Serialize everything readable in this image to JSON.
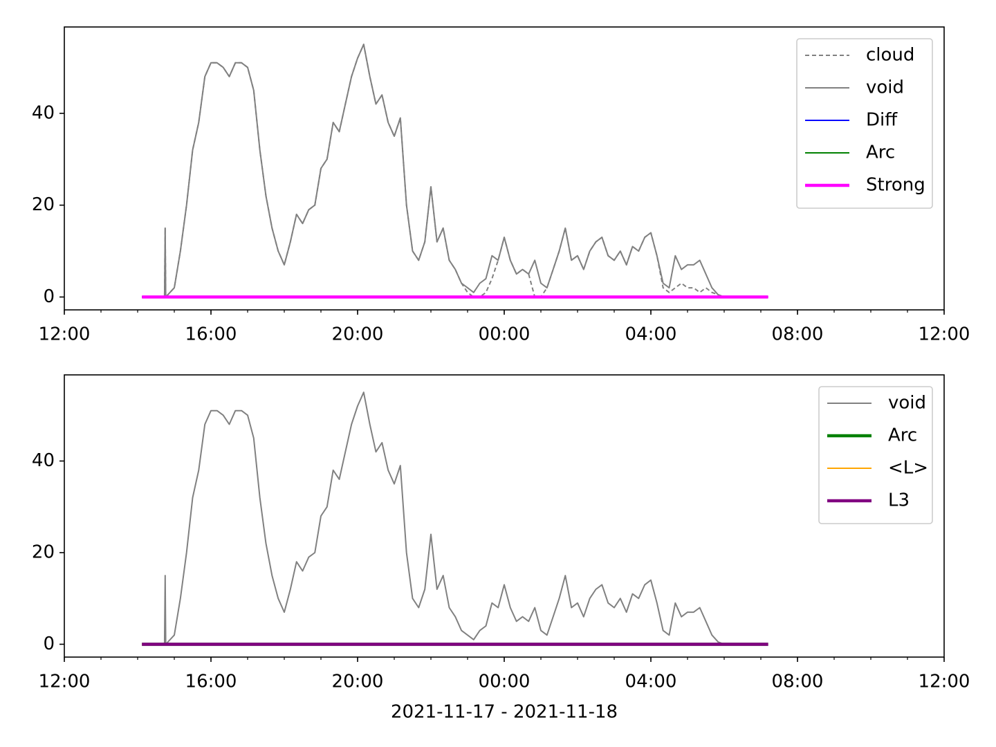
{
  "chart_data": [
    {
      "type": "line",
      "xlim": [
        "12:00",
        "12:00"
      ],
      "xticks": [
        "12:00",
        "16:00",
        "20:00",
        "00:00",
        "04:00",
        "08:00",
        "12:00"
      ],
      "xminorticks": [
        "12:00",
        "13:00",
        "14:00",
        "15:00",
        "16:00",
        "17:00",
        "18:00",
        "19:00",
        "20:00",
        "21:00",
        "22:00",
        "23:00",
        "00:00",
        "01:00",
        "02:00",
        "03:00",
        "04:00",
        "05:00",
        "06:00",
        "07:00",
        "08:00",
        "09:00",
        "10:00",
        "11:00",
        "12:00"
      ],
      "ylim": [
        -2.8,
        58.8
      ],
      "yticks": [
        0,
        20,
        40
      ],
      "legend": "upper right",
      "series": [
        {
          "name": "cloud",
          "color": "#808080",
          "linestyle": "dashed",
          "linewidth": 2,
          "x": [
            "14:44",
            "14:45",
            "14:46",
            "15:00",
            "15:10",
            "15:20",
            "15:30",
            "15:40",
            "15:50",
            "16:00",
            "16:10",
            "16:20",
            "16:30",
            "16:40",
            "16:50",
            "17:00",
            "17:10",
            "17:20",
            "17:30",
            "17:40",
            "17:50",
            "18:00",
            "18:10",
            "18:20",
            "18:30",
            "18:40",
            "18:50",
            "19:00",
            "19:10",
            "19:20",
            "19:30",
            "19:40",
            "19:50",
            "20:00",
            "20:10",
            "20:20",
            "20:30",
            "20:40",
            "20:50",
            "21:00",
            "21:10",
            "21:20",
            "21:30",
            "21:40",
            "21:50",
            "22:00",
            "22:10",
            "22:20",
            "22:30",
            "22:40",
            "22:50",
            "23:00",
            "23:10",
            "23:20",
            "23:30",
            "23:40",
            "23:50",
            "00:00",
            "00:10",
            "00:20",
            "00:30",
            "00:40",
            "00:50",
            "01:00",
            "01:10",
            "01:20",
            "01:30",
            "01:40",
            "01:50",
            "02:00",
            "02:10",
            "02:20",
            "02:30",
            "02:40",
            "02:50",
            "03:00",
            "03:10",
            "03:20",
            "03:30",
            "03:40",
            "03:50",
            "04:00",
            "04:10",
            "04:20",
            "04:30",
            "04:40",
            "04:50",
            "05:00",
            "05:10",
            "05:20",
            "05:30",
            "05:40",
            "05:50",
            "06:00"
          ],
          "values": [
            0,
            15,
            0,
            2,
            10,
            20,
            32,
            38,
            48,
            51,
            51,
            50,
            48,
            51,
            51,
            50,
            45,
            32,
            22,
            15,
            10,
            7,
            12,
            18,
            16,
            19,
            20,
            28,
            30,
            38,
            36,
            42,
            48,
            52,
            55,
            48,
            42,
            44,
            38,
            35,
            39,
            20,
            10,
            8,
            12,
            24,
            12,
            15,
            8,
            6,
            3,
            1,
            0,
            0,
            1,
            4,
            8,
            13,
            8,
            5,
            6,
            5,
            0,
            0,
            2,
            6,
            10,
            15,
            8,
            9,
            6,
            10,
            12,
            13,
            9,
            8,
            10,
            7,
            11,
            10,
            13,
            14,
            9,
            2,
            1,
            2,
            3,
            2,
            2,
            1,
            2,
            1,
            0.5,
            0
          ]
        },
        {
          "name": "void",
          "color": "#808080",
          "linestyle": "solid",
          "linewidth": 2,
          "x": [
            "14:44",
            "14:45",
            "14:46",
            "15:00",
            "15:10",
            "15:20",
            "15:30",
            "15:40",
            "15:50",
            "16:00",
            "16:10",
            "16:20",
            "16:30",
            "16:40",
            "16:50",
            "17:00",
            "17:10",
            "17:20",
            "17:30",
            "17:40",
            "17:50",
            "18:00",
            "18:10",
            "18:20",
            "18:30",
            "18:40",
            "18:50",
            "19:00",
            "19:10",
            "19:20",
            "19:30",
            "19:40",
            "19:50",
            "20:00",
            "20:10",
            "20:20",
            "20:30",
            "20:40",
            "20:50",
            "21:00",
            "21:10",
            "21:20",
            "21:30",
            "21:40",
            "21:50",
            "22:00",
            "22:10",
            "22:20",
            "22:30",
            "22:40",
            "22:50",
            "23:00",
            "23:10",
            "23:20",
            "23:30",
            "23:40",
            "23:50",
            "00:00",
            "00:10",
            "00:20",
            "00:30",
            "00:40",
            "00:50",
            "01:00",
            "01:10",
            "01:20",
            "01:30",
            "01:40",
            "01:50",
            "02:00",
            "02:10",
            "02:20",
            "02:30",
            "02:40",
            "02:50",
            "03:00",
            "03:10",
            "03:20",
            "03:30",
            "03:40",
            "03:50",
            "04:00",
            "04:10",
            "04:20",
            "04:30",
            "04:40",
            "04:50",
            "05:00",
            "05:10",
            "05:20",
            "05:30",
            "05:40",
            "05:50",
            "06:00"
          ],
          "values": [
            0,
            15,
            0,
            2,
            10,
            20,
            32,
            38,
            48,
            51,
            51,
            50,
            48,
            51,
            51,
            50,
            45,
            32,
            22,
            15,
            10,
            7,
            12,
            18,
            16,
            19,
            20,
            28,
            30,
            38,
            36,
            42,
            48,
            52,
            55,
            48,
            42,
            44,
            38,
            35,
            39,
            20,
            10,
            8,
            12,
            24,
            12,
            15,
            8,
            6,
            3,
            2,
            1,
            3,
            4,
            9,
            8,
            13,
            8,
            5,
            6,
            5,
            8,
            3,
            2,
            6,
            10,
            15,
            8,
            9,
            6,
            10,
            12,
            13,
            9,
            8,
            10,
            7,
            11,
            10,
            13,
            14,
            9,
            3,
            2,
            9,
            6,
            7,
            7,
            8,
            5,
            2,
            0.5,
            0
          ]
        },
        {
          "name": "Diff",
          "color": "#0000ff",
          "linestyle": "solid",
          "linewidth": 2,
          "x": [
            "14:07",
            "07:12"
          ],
          "values": [
            0,
            0
          ]
        },
        {
          "name": "Arc",
          "color": "#008000",
          "linestyle": "solid",
          "linewidth": 2,
          "x": [
            "14:07",
            "07:12"
          ],
          "values": [
            0,
            0
          ]
        },
        {
          "name": "Strong",
          "color": "#ff00ff",
          "linestyle": "solid",
          "linewidth": 4.5,
          "x": [
            "14:07",
            "07:12"
          ],
          "values": [
            0,
            0
          ]
        }
      ]
    },
    {
      "type": "line",
      "xlim": [
        "12:00",
        "12:00"
      ],
      "xticks": [
        "12:00",
        "16:00",
        "20:00",
        "00:00",
        "04:00",
        "08:00",
        "12:00"
      ],
      "xminorticks": [
        "12:00",
        "13:00",
        "14:00",
        "15:00",
        "16:00",
        "17:00",
        "18:00",
        "19:00",
        "20:00",
        "21:00",
        "22:00",
        "23:00",
        "00:00",
        "01:00",
        "02:00",
        "03:00",
        "04:00",
        "05:00",
        "06:00",
        "07:00",
        "08:00",
        "09:00",
        "10:00",
        "11:00",
        "12:00"
      ],
      "xlabel": "2021-11-17 - 2021-11-18",
      "ylim": [
        -2.8,
        58.8
      ],
      "yticks": [
        0,
        20,
        40
      ],
      "legend": "upper right",
      "series": [
        {
          "name": "void",
          "color": "#808080",
          "linestyle": "solid",
          "linewidth": 2,
          "x": [
            "14:44",
            "14:45",
            "14:46",
            "15:00",
            "15:10",
            "15:20",
            "15:30",
            "15:40",
            "15:50",
            "16:00",
            "16:10",
            "16:20",
            "16:30",
            "16:40",
            "16:50",
            "17:00",
            "17:10",
            "17:20",
            "17:30",
            "17:40",
            "17:50",
            "18:00",
            "18:10",
            "18:20",
            "18:30",
            "18:40",
            "18:50",
            "19:00",
            "19:10",
            "19:20",
            "19:30",
            "19:40",
            "19:50",
            "20:00",
            "20:10",
            "20:20",
            "20:30",
            "20:40",
            "20:50",
            "21:00",
            "21:10",
            "21:20",
            "21:30",
            "21:40",
            "21:50",
            "22:00",
            "22:10",
            "22:20",
            "22:30",
            "22:40",
            "22:50",
            "23:00",
            "23:10",
            "23:20",
            "23:30",
            "23:40",
            "23:50",
            "00:00",
            "00:10",
            "00:20",
            "00:30",
            "00:40",
            "00:50",
            "01:00",
            "01:10",
            "01:20",
            "01:30",
            "01:40",
            "01:50",
            "02:00",
            "02:10",
            "02:20",
            "02:30",
            "02:40",
            "02:50",
            "03:00",
            "03:10",
            "03:20",
            "03:30",
            "03:40",
            "03:50",
            "04:00",
            "04:10",
            "04:20",
            "04:30",
            "04:40",
            "04:50",
            "05:00",
            "05:10",
            "05:20",
            "05:30",
            "05:40",
            "05:50",
            "06:00"
          ],
          "values": [
            0,
            15,
            0,
            2,
            10,
            20,
            32,
            38,
            48,
            51,
            51,
            50,
            48,
            51,
            51,
            50,
            45,
            32,
            22,
            15,
            10,
            7,
            12,
            18,
            16,
            19,
            20,
            28,
            30,
            38,
            36,
            42,
            48,
            52,
            55,
            48,
            42,
            44,
            38,
            35,
            39,
            20,
            10,
            8,
            12,
            24,
            12,
            15,
            8,
            6,
            3,
            2,
            1,
            3,
            4,
            9,
            8,
            13,
            8,
            5,
            6,
            5,
            8,
            3,
            2,
            6,
            10,
            15,
            8,
            9,
            6,
            10,
            12,
            13,
            9,
            8,
            10,
            7,
            11,
            10,
            13,
            14,
            9,
            3,
            2,
            9,
            6,
            7,
            7,
            8,
            5,
            2,
            0.5,
            0
          ]
        },
        {
          "name": "Arc",
          "color": "#008000",
          "linestyle": "solid",
          "linewidth": 4.5,
          "x": [
            "14:07",
            "07:12"
          ],
          "values": [
            0,
            0
          ]
        },
        {
          "name": "<L>",
          "color": "#ffa500",
          "linestyle": "solid",
          "linewidth": 2,
          "x": [
            "14:07",
            "07:12"
          ],
          "values": [
            0,
            0
          ]
        },
        {
          "name": "L3",
          "color": "#800080",
          "linestyle": "solid",
          "linewidth": 4.5,
          "x": [
            "14:07",
            "07:12"
          ],
          "values": [
            0,
            0
          ]
        }
      ]
    }
  ]
}
